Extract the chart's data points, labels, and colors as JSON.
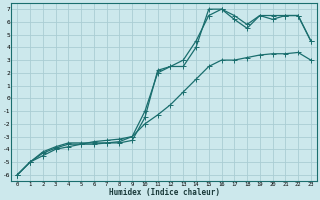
{
  "xlabel": "Humidex (Indice chaleur)",
  "xlim": [
    -0.5,
    23.5
  ],
  "ylim": [
    -6.5,
    7.5
  ],
  "xticks": [
    0,
    1,
    2,
    3,
    4,
    5,
    6,
    7,
    8,
    9,
    10,
    11,
    12,
    13,
    14,
    15,
    16,
    17,
    18,
    19,
    20,
    21,
    22,
    23
  ],
  "yticks": [
    -6,
    -5,
    -4,
    -3,
    -2,
    -1,
    0,
    1,
    2,
    3,
    4,
    5,
    6,
    7
  ],
  "bg_color": "#cce8ec",
  "grid_color": "#aacdd4",
  "line_color": "#1a6e6e",
  "line1_x": [
    0,
    1,
    2,
    3,
    4,
    5,
    6,
    7,
    8,
    9,
    10,
    11,
    12,
    13,
    14,
    15,
    16,
    17,
    18,
    19,
    20,
    21,
    22,
    23
  ],
  "line1_y": [
    -6.0,
    -5.0,
    -4.5,
    -4.0,
    -3.8,
    -3.6,
    -3.4,
    -3.3,
    -3.2,
    -3.0,
    -2.0,
    -1.3,
    -0.5,
    0.5,
    1.5,
    2.5,
    3.0,
    3.0,
    3.2,
    3.4,
    3.5,
    3.5,
    3.6,
    3.0
  ],
  "line2_x": [
    0,
    1,
    2,
    3,
    4,
    5,
    6,
    7,
    8,
    9,
    10,
    11,
    12,
    13,
    14,
    15,
    16,
    17,
    18,
    19,
    20,
    21,
    22,
    23
  ],
  "line2_y": [
    -6.0,
    -5.0,
    -4.2,
    -3.8,
    -3.5,
    -3.5,
    -3.5,
    -3.5,
    -3.5,
    -3.3,
    -1.5,
    2.2,
    2.5,
    2.5,
    4.0,
    7.0,
    7.0,
    6.2,
    5.5,
    6.5,
    6.2,
    6.5,
    6.5,
    4.5
  ],
  "line3_x": [
    0,
    1,
    2,
    3,
    4,
    5,
    6,
    7,
    8,
    9,
    10,
    11,
    12,
    13,
    14,
    15,
    16,
    17,
    18,
    19,
    20,
    21,
    22,
    23
  ],
  "line3_y": [
    -6.0,
    -5.0,
    -4.3,
    -3.9,
    -3.6,
    -3.6,
    -3.6,
    -3.5,
    -3.4,
    -3.0,
    -1.0,
    2.0,
    2.5,
    3.0,
    4.5,
    6.5,
    7.0,
    6.5,
    5.8,
    6.5,
    6.5,
    6.5,
    6.5,
    4.5
  ]
}
